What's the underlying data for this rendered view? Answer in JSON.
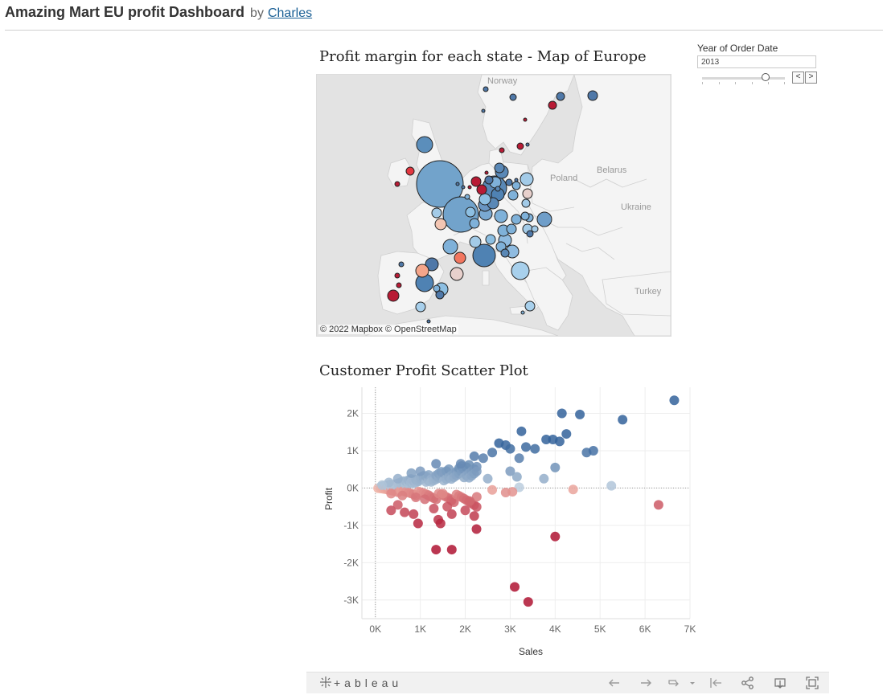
{
  "header": {
    "title": "Amazing Mart EU profit Dashboard",
    "by": "by",
    "author": "Charles"
  },
  "map": {
    "title": "Profit margin for each state - Map of Europe",
    "labels": {
      "norway": "Norway",
      "poland": "Poland",
      "belarus": "Belarus",
      "ukraine": "Ukraine",
      "turkey": "Turkey"
    },
    "attribution": "© 2022 Mapbox  © OpenStreetMap"
  },
  "filter": {
    "label": "Year of Order Date",
    "value": "2013",
    "slider_position": 0.78,
    "prev_label": "<",
    "next_label": ">"
  },
  "scatter": {
    "title": "Customer Profit Scatter Plot"
  },
  "chart_data": {
    "type": "scatter",
    "title": "Customer Profit Scatter Plot",
    "xlabel": "Sales",
    "ylabel": "Profit",
    "xlim": [
      -300,
      7000
    ],
    "ylim": [
      -3500,
      2700
    ],
    "x_ticks": [
      0,
      1000,
      2000,
      3000,
      4000,
      5000,
      6000,
      7000
    ],
    "x_tick_labels": [
      "0K",
      "1K",
      "2K",
      "3K",
      "4K",
      "5K",
      "6K",
      "7K"
    ],
    "y_ticks": [
      2000,
      1000,
      0,
      -1000,
      -2000,
      -3000
    ],
    "y_tick_labels": [
      "2K",
      "1K",
      "0K",
      "-1K",
      "-2K",
      "-3K"
    ],
    "grid": true,
    "color_encoding": "profit diverging red-blue",
    "points": [
      {
        "x": 6650,
        "y": 2350
      },
      {
        "x": 4150,
        "y": 2000
      },
      {
        "x": 4550,
        "y": 1970
      },
      {
        "x": 5500,
        "y": 1830
      },
      {
        "x": 3250,
        "y": 1520
      },
      {
        "x": 4250,
        "y": 1450
      },
      {
        "x": 3800,
        "y": 1300
      },
      {
        "x": 3950,
        "y": 1300
      },
      {
        "x": 4100,
        "y": 1250
      },
      {
        "x": 3350,
        "y": 1100
      },
      {
        "x": 3550,
        "y": 1050
      },
      {
        "x": 4700,
        "y": 950
      },
      {
        "x": 4850,
        "y": 1000
      },
      {
        "x": 2750,
        "y": 1200
      },
      {
        "x": 2900,
        "y": 1150
      },
      {
        "x": 3000,
        "y": 1050
      },
      {
        "x": 2600,
        "y": 950
      },
      {
        "x": 3200,
        "y": 800
      },
      {
        "x": 2400,
        "y": 800
      },
      {
        "x": 2200,
        "y": 850
      },
      {
        "x": 1900,
        "y": 650
      },
      {
        "x": 1350,
        "y": 650
      },
      {
        "x": 1000,
        "y": 450
      },
      {
        "x": 800,
        "y": 400
      },
      {
        "x": 500,
        "y": 250
      },
      {
        "x": 300,
        "y": 150
      },
      {
        "x": 150,
        "y": 80
      },
      {
        "x": 4000,
        "y": 550
      },
      {
        "x": 3750,
        "y": 250
      },
      {
        "x": 3000,
        "y": 450
      },
      {
        "x": 3150,
        "y": 300
      },
      {
        "x": 2500,
        "y": 250
      },
      {
        "x": 5250,
        "y": 60
      },
      {
        "x": 3200,
        "y": 20
      },
      {
        "x": 4400,
        "y": -40
      },
      {
        "x": 6300,
        "y": -450
      },
      {
        "x": 2900,
        "y": -120
      },
      {
        "x": 3050,
        "y": -100
      },
      {
        "x": 2600,
        "y": -50
      },
      {
        "x": 2100,
        "y": -350
      },
      {
        "x": 1500,
        "y": -150
      },
      {
        "x": 1100,
        "y": -300
      },
      {
        "x": 900,
        "y": -250
      },
      {
        "x": 600,
        "y": -200
      },
      {
        "x": 350,
        "y": -150
      },
      {
        "x": 2000,
        "y": -600
      },
      {
        "x": 1700,
        "y": -700
      },
      {
        "x": 1600,
        "y": -500
      },
      {
        "x": 2200,
        "y": -750
      },
      {
        "x": 1300,
        "y": -550
      },
      {
        "x": 850,
        "y": -700
      },
      {
        "x": 650,
        "y": -650
      },
      {
        "x": 350,
        "y": -600
      },
      {
        "x": 500,
        "y": -450
      },
      {
        "x": 1400,
        "y": -850
      },
      {
        "x": 1450,
        "y": -950
      },
      {
        "x": 950,
        "y": -950
      },
      {
        "x": 2250,
        "y": -1100
      },
      {
        "x": 4000,
        "y": -1300
      },
      {
        "x": 1350,
        "y": -1650
      },
      {
        "x": 1700,
        "y": -1650
      },
      {
        "x": 3100,
        "y": -2650
      },
      {
        "x": 3400,
        "y": -3050
      }
    ]
  },
  "toolbar": {
    "logo_text": "+ableau"
  }
}
